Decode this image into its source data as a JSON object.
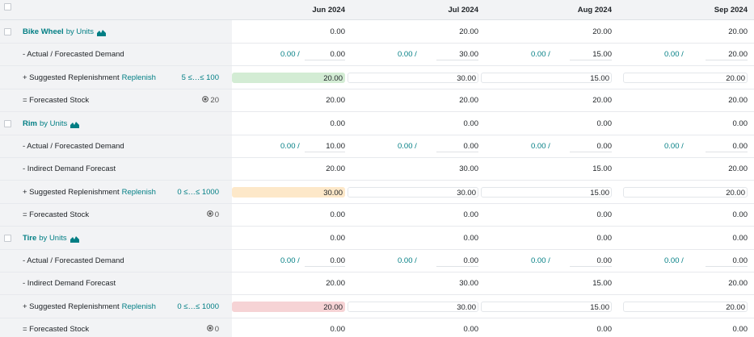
{
  "header": {
    "months": [
      "Jun 2024",
      "Jul 2024",
      "Aug 2024",
      "Sep 2024"
    ]
  },
  "products": [
    {
      "name": "Bike Wheel",
      "uom": "by Units",
      "summary": [
        "0.00",
        "20.00",
        "20.00",
        "20.00"
      ],
      "demand_label": "- Actual / Forecasted Demand",
      "actual": [
        "0.00 /",
        "0.00 /",
        "0.00 /",
        "0.00 /"
      ],
      "forecast": [
        "0.00",
        "30.00",
        "15.00",
        "20.00"
      ],
      "indirect": null,
      "repl_label": "+ Suggested Replenishment",
      "repl_link": "Replenish",
      "bounds": "5 ≤…≤ 100",
      "repl": [
        "20.00",
        "30.00",
        "15.00",
        "20.00"
      ],
      "repl_color": "green",
      "stock_label": "= Forecasted Stock",
      "stock_qty": "20",
      "stock": [
        "20.00",
        "20.00",
        "20.00",
        "20.00"
      ]
    },
    {
      "name": "Rim",
      "uom": "by Units",
      "summary": [
        "0.00",
        "0.00",
        "0.00",
        "0.00"
      ],
      "demand_label": "- Actual / Forecasted Demand",
      "actual": [
        "0.00 /",
        "0.00 /",
        "0.00 /",
        "0.00 /"
      ],
      "forecast": [
        "10.00",
        "0.00",
        "0.00",
        "0.00"
      ],
      "indirect_label": "- Indirect Demand Forecast",
      "indirect": [
        "20.00",
        "30.00",
        "15.00",
        "20.00"
      ],
      "repl_label": "+ Suggested Replenishment",
      "repl_link": "Replenish",
      "bounds": "0 ≤…≤ 1000",
      "repl": [
        "30.00",
        "30.00",
        "15.00",
        "20.00"
      ],
      "repl_color": "orange",
      "stock_label": "= Forecasted Stock",
      "stock_qty": "0",
      "stock": [
        "0.00",
        "0.00",
        "0.00",
        "0.00"
      ]
    },
    {
      "name": "Tire",
      "uom": "by Units",
      "summary": [
        "0.00",
        "0.00",
        "0.00",
        "0.00"
      ],
      "demand_label": "- Actual / Forecasted Demand",
      "actual": [
        "0.00 /",
        "0.00 /",
        "0.00 /",
        "0.00 /"
      ],
      "forecast": [
        "0.00",
        "0.00",
        "0.00",
        "0.00"
      ],
      "indirect_label": "- Indirect Demand Forecast",
      "indirect": [
        "20.00",
        "30.00",
        "15.00",
        "20.00"
      ],
      "repl_label": "+ Suggested Replenishment",
      "repl_link": "Replenish",
      "bounds": "0 ≤…≤ 1000",
      "repl": [
        "20.00",
        "30.00",
        "15.00",
        "20.00"
      ],
      "repl_color": "red",
      "stock_label": "= Forecasted Stock",
      "stock_qty": "0",
      "stock": [
        "0.00",
        "0.00",
        "0.00",
        "0.00"
      ]
    }
  ],
  "icons": {
    "chart": "area-chart-icon",
    "stock": "warehouse-stock-icon",
    "checkbox": "checkbox-icon"
  },
  "colors": {
    "accent": "#017e84",
    "green": "#d3ecd4",
    "orange": "#fde8c9",
    "red": "#f6d3d5"
  }
}
